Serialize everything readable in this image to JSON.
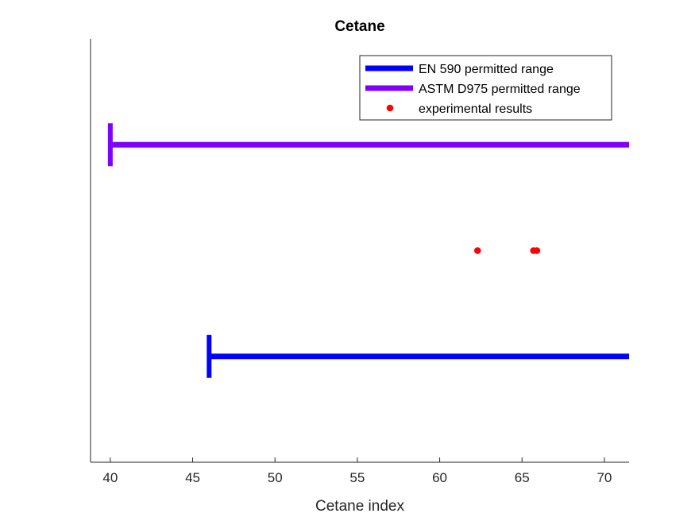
{
  "chart_data": {
    "type": "range",
    "title": "Cetane",
    "xlabel": "Cetane index",
    "ylabel": "",
    "xlim": [
      38.8,
      71.5
    ],
    "xticks": [
      40,
      45,
      50,
      55,
      60,
      65,
      70
    ],
    "tick_labels": [
      "40",
      "45",
      "50",
      "55",
      "60",
      "65",
      "70"
    ],
    "ylim": [
      0,
      4
    ],
    "series": [
      {
        "name": "EN 590 permitted range",
        "kind": "range",
        "min": 46,
        "max": 71.5,
        "y": 1,
        "color": "#0000ff"
      },
      {
        "name": "ASTM D975 permitted range",
        "kind": "range",
        "min": 40,
        "max": 71.5,
        "y": 3,
        "color": "#8000ff"
      },
      {
        "name": "experimental results",
        "kind": "points",
        "values": [
          62.3,
          65.7,
          65.9
        ],
        "y": 2,
        "color": "#ff0000"
      }
    ],
    "legend_position": "top-right",
    "legend": [
      "EN 590 permitted range",
      "ASTM D975 permitted range",
      "experimental results"
    ]
  }
}
